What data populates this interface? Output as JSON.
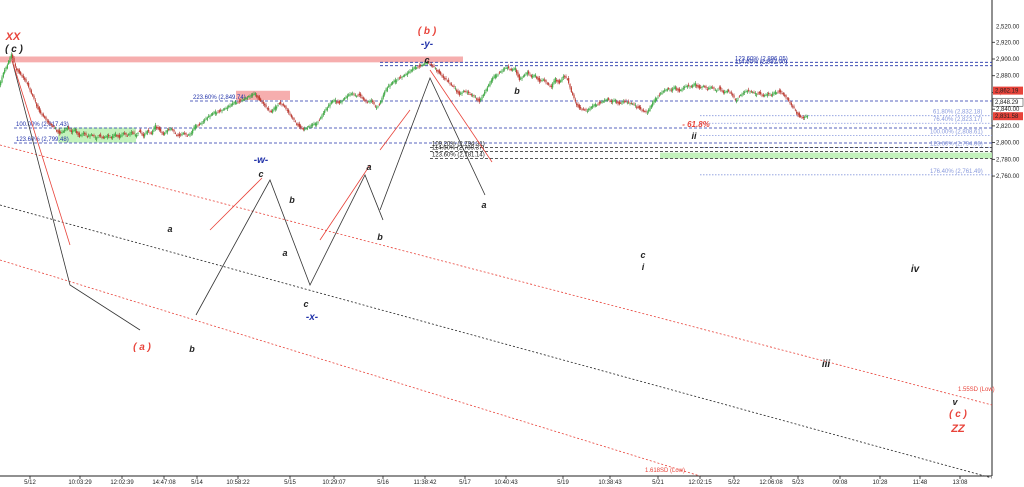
{
  "chart_data": {
    "type": "candlestick",
    "title": "",
    "xlabel": "",
    "ylabel": "",
    "ylim": [
      2744,
      2526
    ],
    "grid": false,
    "y_ticks": [
      "2,760.00",
      "2,780.00",
      "2,800.00",
      "2,820.00",
      "2,840.00",
      "2,860.00",
      "2,880.00",
      "2,900.00",
      "2,920.00"
    ],
    "x_ticks": [
      "5/12",
      "10:03:29",
      "12:02:39",
      "14:47:08",
      "5/14",
      "10:58:22",
      "5/15",
      "10:29:07",
      "5/16",
      "11:38:42",
      "5/17",
      "10:40:43",
      "5/19",
      "10:38:43",
      "5/21",
      "12:02:15",
      "5/22",
      "12:06:08",
      "5/23",
      "09:08",
      "10:28",
      "11:48",
      "13:08"
    ],
    "price_markers": [
      {
        "label": "2,862.19",
        "color": "#e8433a",
        "value": 2862.19
      },
      {
        "label": "2,848.29",
        "color": "#ffffff",
        "value": 2848.29
      },
      {
        "label": "2,831.58",
        "color": "#e8433a",
        "value": 2831.58
      }
    ],
    "levels": [
      {
        "label": "123.60% (2,896.05)",
        "value": 2896.05,
        "color": "#2233aa",
        "style": "dash"
      },
      {
        "label": "114.60% (2,892.00)",
        "value": 2892.0,
        "color": "#2233aa",
        "style": "dash"
      },
      {
        "label": "223.60% (2,849.74)",
        "value": 2849.74,
        "color": "#2233aa",
        "style": "dash"
      },
      {
        "label": "100.00% (2,817.43)",
        "value": 2817.43,
        "color": "#2233aa",
        "style": "dash"
      },
      {
        "label": "123.60% (2,799.48)",
        "value": 2799.48,
        "color": "#2233aa",
        "style": "dash"
      },
      {
        "label": "61.80% (2,832.18)",
        "value": 2832.18,
        "color": "#8899dd",
        "style": "dot"
      },
      {
        "label": "76.40% (2,823.17)",
        "value": 2823.17,
        "color": "#8899dd",
        "style": "dot"
      },
      {
        "label": "100.00% (2,808.61)",
        "value": 2808.61,
        "color": "#8899dd",
        "style": "dot"
      },
      {
        "label": "123.60% (2,794.06)",
        "value": 2794.06,
        "color": "#8899dd",
        "style": "dot"
      },
      {
        "label": "176.40% (2,761.49)",
        "value": 2761.49,
        "color": "#8899dd",
        "style": "dot"
      },
      {
        "label": "109.20% (2,794.31)",
        "value": 2794.31,
        "color": "#222222",
        "style": "dash"
      },
      {
        "label": "114.60% (2,789.37)",
        "value": 2789.37,
        "color": "#222222",
        "style": "dash"
      },
      {
        "label": "123.60% (2,781.14)",
        "value": 2781.14,
        "color": "#222222",
        "style": "dash"
      }
    ],
    "channel_labels": [
      {
        "label": "1.55SD (Low)",
        "color": "#e8433a"
      },
      {
        "label": "1.618SD (Low)",
        "color": "#e8433a"
      }
    ],
    "wave_labels": [
      "XX",
      "( c )",
      "( a )",
      "b",
      "a",
      "-w-",
      "c",
      "b",
      "a",
      "c",
      "-x-",
      "a",
      "b",
      "( b )",
      "-y-",
      "c",
      "a",
      "b",
      "- 61.8%",
      "ii",
      "c",
      "i",
      "iv",
      "iii",
      "v",
      "( c )",
      "ZZ"
    ],
    "price_path": [
      [
        0,
        2868
      ],
      [
        4,
        2884
      ],
      [
        8,
        2893
      ],
      [
        12,
        2905
      ],
      [
        16,
        2890
      ],
      [
        20,
        2884
      ],
      [
        24,
        2878
      ],
      [
        28,
        2870
      ],
      [
        32,
        2858
      ],
      [
        36,
        2848
      ],
      [
        40,
        2838
      ],
      [
        44,
        2832
      ],
      [
        48,
        2825
      ],
      [
        52,
        2820
      ],
      [
        56,
        2816
      ],
      [
        60,
        2812
      ],
      [
        64,
        2814
      ],
      [
        68,
        2818
      ],
      [
        72,
        2812
      ],
      [
        76,
        2815
      ],
      [
        80,
        2808
      ],
      [
        84,
        2812
      ],
      [
        88,
        2807
      ],
      [
        92,
        2809
      ],
      [
        96,
        2805
      ],
      [
        100,
        2809
      ],
      [
        104,
        2806
      ],
      [
        108,
        2808
      ],
      [
        112,
        2805
      ],
      [
        116,
        2810
      ],
      [
        120,
        2807
      ],
      [
        124,
        2812
      ],
      [
        128,
        2808
      ],
      [
        132,
        2812
      ],
      [
        136,
        2808
      ],
      [
        140,
        2815
      ],
      [
        144,
        2808
      ],
      [
        148,
        2814
      ],
      [
        152,
        2810
      ],
      [
        156,
        2820
      ],
      [
        160,
        2816
      ],
      [
        164,
        2810
      ],
      [
        168,
        2815
      ],
      [
        172,
        2816
      ],
      [
        176,
        2810
      ],
      [
        180,
        2809
      ],
      [
        184,
        2812
      ],
      [
        188,
        2808
      ],
      [
        192,
        2811
      ],
      [
        196,
        2820
      ],
      [
        200,
        2822
      ],
      [
        204,
        2826
      ],
      [
        208,
        2830
      ],
      [
        212,
        2833
      ],
      [
        216,
        2836
      ],
      [
        220,
        2838
      ],
      [
        224,
        2840
      ],
      [
        228,
        2842
      ],
      [
        232,
        2845
      ],
      [
        236,
        2848
      ],
      [
        240,
        2850
      ],
      [
        244,
        2852
      ],
      [
        248,
        2854
      ],
      [
        252,
        2856
      ],
      [
        256,
        2858
      ],
      [
        260,
        2852
      ],
      [
        264,
        2847
      ],
      [
        268,
        2840
      ],
      [
        272,
        2836
      ],
      [
        276,
        2842
      ],
      [
        280,
        2848
      ],
      [
        284,
        2845
      ],
      [
        288,
        2838
      ],
      [
        292,
        2830
      ],
      [
        296,
        2824
      ],
      [
        300,
        2820
      ],
      [
        304,
        2816
      ],
      [
        308,
        2818
      ],
      [
        312,
        2820
      ],
      [
        316,
        2822
      ],
      [
        320,
        2828
      ],
      [
        324,
        2836
      ],
      [
        328,
        2842
      ],
      [
        332,
        2848
      ],
      [
        336,
        2850
      ],
      [
        340,
        2848
      ],
      [
        344,
        2852
      ],
      [
        348,
        2856
      ],
      [
        352,
        2858
      ],
      [
        356,
        2856
      ],
      [
        360,
        2858
      ],
      [
        364,
        2852
      ],
      [
        368,
        2848
      ],
      [
        372,
        2850
      ],
      [
        376,
        2842
      ],
      [
        380,
        2846
      ],
      [
        384,
        2858
      ],
      [
        388,
        2866
      ],
      [
        392,
        2870
      ],
      [
        396,
        2874
      ],
      [
        400,
        2878
      ],
      [
        404,
        2880
      ],
      [
        408,
        2883
      ],
      [
        412,
        2886
      ],
      [
        416,
        2890
      ],
      [
        420,
        2892
      ],
      [
        424,
        2894
      ],
      [
        428,
        2896
      ],
      [
        432,
        2892
      ],
      [
        436,
        2888
      ],
      [
        440,
        2884
      ],
      [
        444,
        2878
      ],
      [
        448,
        2874
      ],
      [
        452,
        2868
      ],
      [
        456,
        2864
      ],
      [
        460,
        2858
      ],
      [
        464,
        2862
      ],
      [
        468,
        2860
      ],
      [
        472,
        2856
      ],
      [
        476,
        2854
      ],
      [
        480,
        2850
      ],
      [
        484,
        2858
      ],
      [
        488,
        2866
      ],
      [
        492,
        2874
      ],
      [
        496,
        2880
      ],
      [
        500,
        2884
      ],
      [
        504,
        2888
      ],
      [
        508,
        2890
      ],
      [
        512,
        2886
      ],
      [
        516,
        2888
      ],
      [
        520,
        2876
      ],
      [
        524,
        2880
      ],
      [
        528,
        2884
      ],
      [
        532,
        2878
      ],
      [
        536,
        2880
      ],
      [
        540,
        2874
      ],
      [
        544,
        2876
      ],
      [
        548,
        2870
      ],
      [
        552,
        2866
      ],
      [
        556,
        2876
      ],
      [
        560,
        2872
      ],
      [
        564,
        2880
      ],
      [
        568,
        2876
      ],
      [
        572,
        2860
      ],
      [
        576,
        2848
      ],
      [
        580,
        2842
      ],
      [
        584,
        2840
      ],
      [
        588,
        2838
      ],
      [
        592,
        2842
      ],
      [
        596,
        2845
      ],
      [
        600,
        2848
      ],
      [
        604,
        2850
      ],
      [
        608,
        2852
      ],
      [
        612,
        2848
      ],
      [
        616,
        2850
      ],
      [
        620,
        2847
      ],
      [
        624,
        2850
      ],
      [
        628,
        2848
      ],
      [
        632,
        2846
      ],
      [
        636,
        2844
      ],
      [
        640,
        2842
      ],
      [
        644,
        2838
      ],
      [
        648,
        2836
      ],
      [
        652,
        2844
      ],
      [
        656,
        2852
      ],
      [
        660,
        2858
      ],
      [
        664,
        2862
      ],
      [
        668,
        2864
      ],
      [
        672,
        2862
      ],
      [
        676,
        2866
      ],
      [
        680,
        2862
      ],
      [
        684,
        2866
      ],
      [
        688,
        2868
      ],
      [
        692,
        2866
      ],
      [
        696,
        2870
      ],
      [
        700,
        2866
      ],
      [
        704,
        2868
      ],
      [
        708,
        2864
      ],
      [
        712,
        2866
      ],
      [
        716,
        2862
      ],
      [
        720,
        2866
      ],
      [
        724,
        2860
      ],
      [
        728,
        2862
      ],
      [
        732,
        2858
      ],
      [
        736,
        2850
      ],
      [
        740,
        2856
      ],
      [
        744,
        2860
      ],
      [
        748,
        2862
      ],
      [
        752,
        2860
      ],
      [
        756,
        2858
      ],
      [
        760,
        2860
      ],
      [
        764,
        2856
      ],
      [
        768,
        2858
      ],
      [
        772,
        2856
      ],
      [
        776,
        2860
      ],
      [
        780,
        2862
      ],
      [
        784,
        2858
      ],
      [
        788,
        2852
      ],
      [
        792,
        2844
      ],
      [
        796,
        2838
      ],
      [
        800,
        2832
      ],
      [
        804,
        2830
      ],
      [
        808,
        2832
      ]
    ]
  }
}
